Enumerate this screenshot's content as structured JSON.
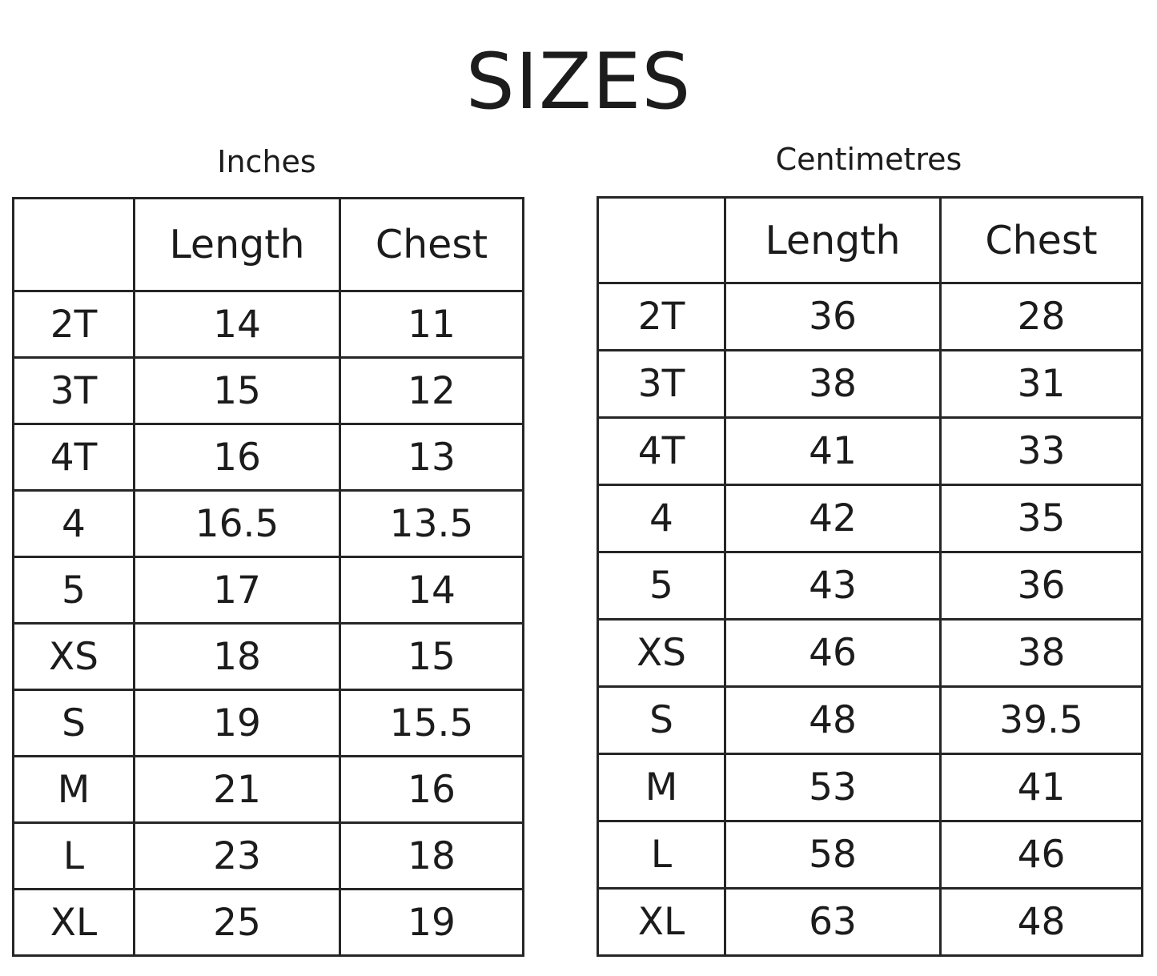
{
  "title": "SIZES",
  "tables": [
    {
      "unit_label": "Inches",
      "headers": [
        "",
        "Length",
        "Chest"
      ],
      "rows": [
        [
          "2T",
          "14",
          "11"
        ],
        [
          "3T",
          "15",
          "12"
        ],
        [
          "4T",
          "16",
          "13"
        ],
        [
          "4",
          "16.5",
          "13.5"
        ],
        [
          "5",
          "17",
          "14"
        ],
        [
          "XS",
          "18",
          "15"
        ],
        [
          "S",
          "19",
          "15.5"
        ],
        [
          "M",
          "21",
          "16"
        ],
        [
          "L",
          "23",
          "18"
        ],
        [
          "XL",
          "25",
          "19"
        ]
      ]
    },
    {
      "unit_label": "Centimetres",
      "headers": [
        "",
        "Length",
        "Chest"
      ],
      "rows": [
        [
          "2T",
          "36",
          "28"
        ],
        [
          "3T",
          "38",
          "31"
        ],
        [
          "4T",
          "41",
          "33"
        ],
        [
          "4",
          "42",
          "35"
        ],
        [
          "5",
          "43",
          "36"
        ],
        [
          "XS",
          "46",
          "38"
        ],
        [
          "S",
          "48",
          "39.5"
        ],
        [
          "M",
          "53",
          "41"
        ],
        [
          "L",
          "58",
          "46"
        ],
        [
          "XL",
          "63",
          "48"
        ]
      ]
    }
  ]
}
